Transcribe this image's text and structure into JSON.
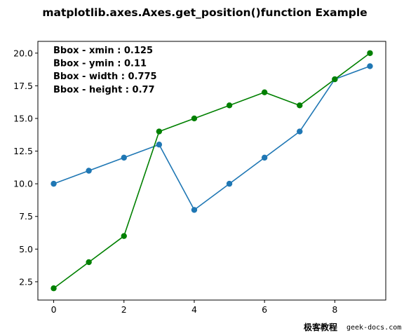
{
  "chart_data": {
    "type": "line",
    "title": "matplotlib.axes.Axes.get_position()function Example",
    "xlabel": "",
    "ylabel": "",
    "xlim": [
      -0.45,
      9.45
    ],
    "ylim": [
      1.1,
      20.9
    ],
    "xticks": [
      0,
      2,
      4,
      6,
      8
    ],
    "xtick_labels": [
      "0",
      "2",
      "4",
      "6",
      "8"
    ],
    "yticks": [
      2.5,
      5.0,
      7.5,
      10.0,
      12.5,
      15.0,
      17.5,
      20.0
    ],
    "ytick_labels": [
      "2.5",
      "5.0",
      "7.5",
      "10.0",
      "12.5",
      "15.0",
      "17.5",
      "20.0"
    ],
    "grid": false,
    "x": [
      0,
      1,
      2,
      3,
      4,
      5,
      6,
      7,
      8,
      9
    ],
    "series": [
      {
        "values": [
          10,
          11,
          12,
          13,
          8,
          10,
          12,
          14,
          18,
          19
        ],
        "color": "#1f77b4",
        "marker": "circle"
      },
      {
        "values": [
          2,
          4,
          6,
          14,
          15,
          16,
          17,
          16,
          18,
          20
        ],
        "color": "#008000",
        "marker": "circle"
      }
    ],
    "annotations": [
      "Bbox - xmin : 0.125",
      "Bbox - ymin : 0.11",
      "Bbox - width : 0.775",
      "Bbox - height : 0.77"
    ]
  },
  "watermark": {
    "chinese": "极客教程",
    "url": "geek-docs.com"
  }
}
